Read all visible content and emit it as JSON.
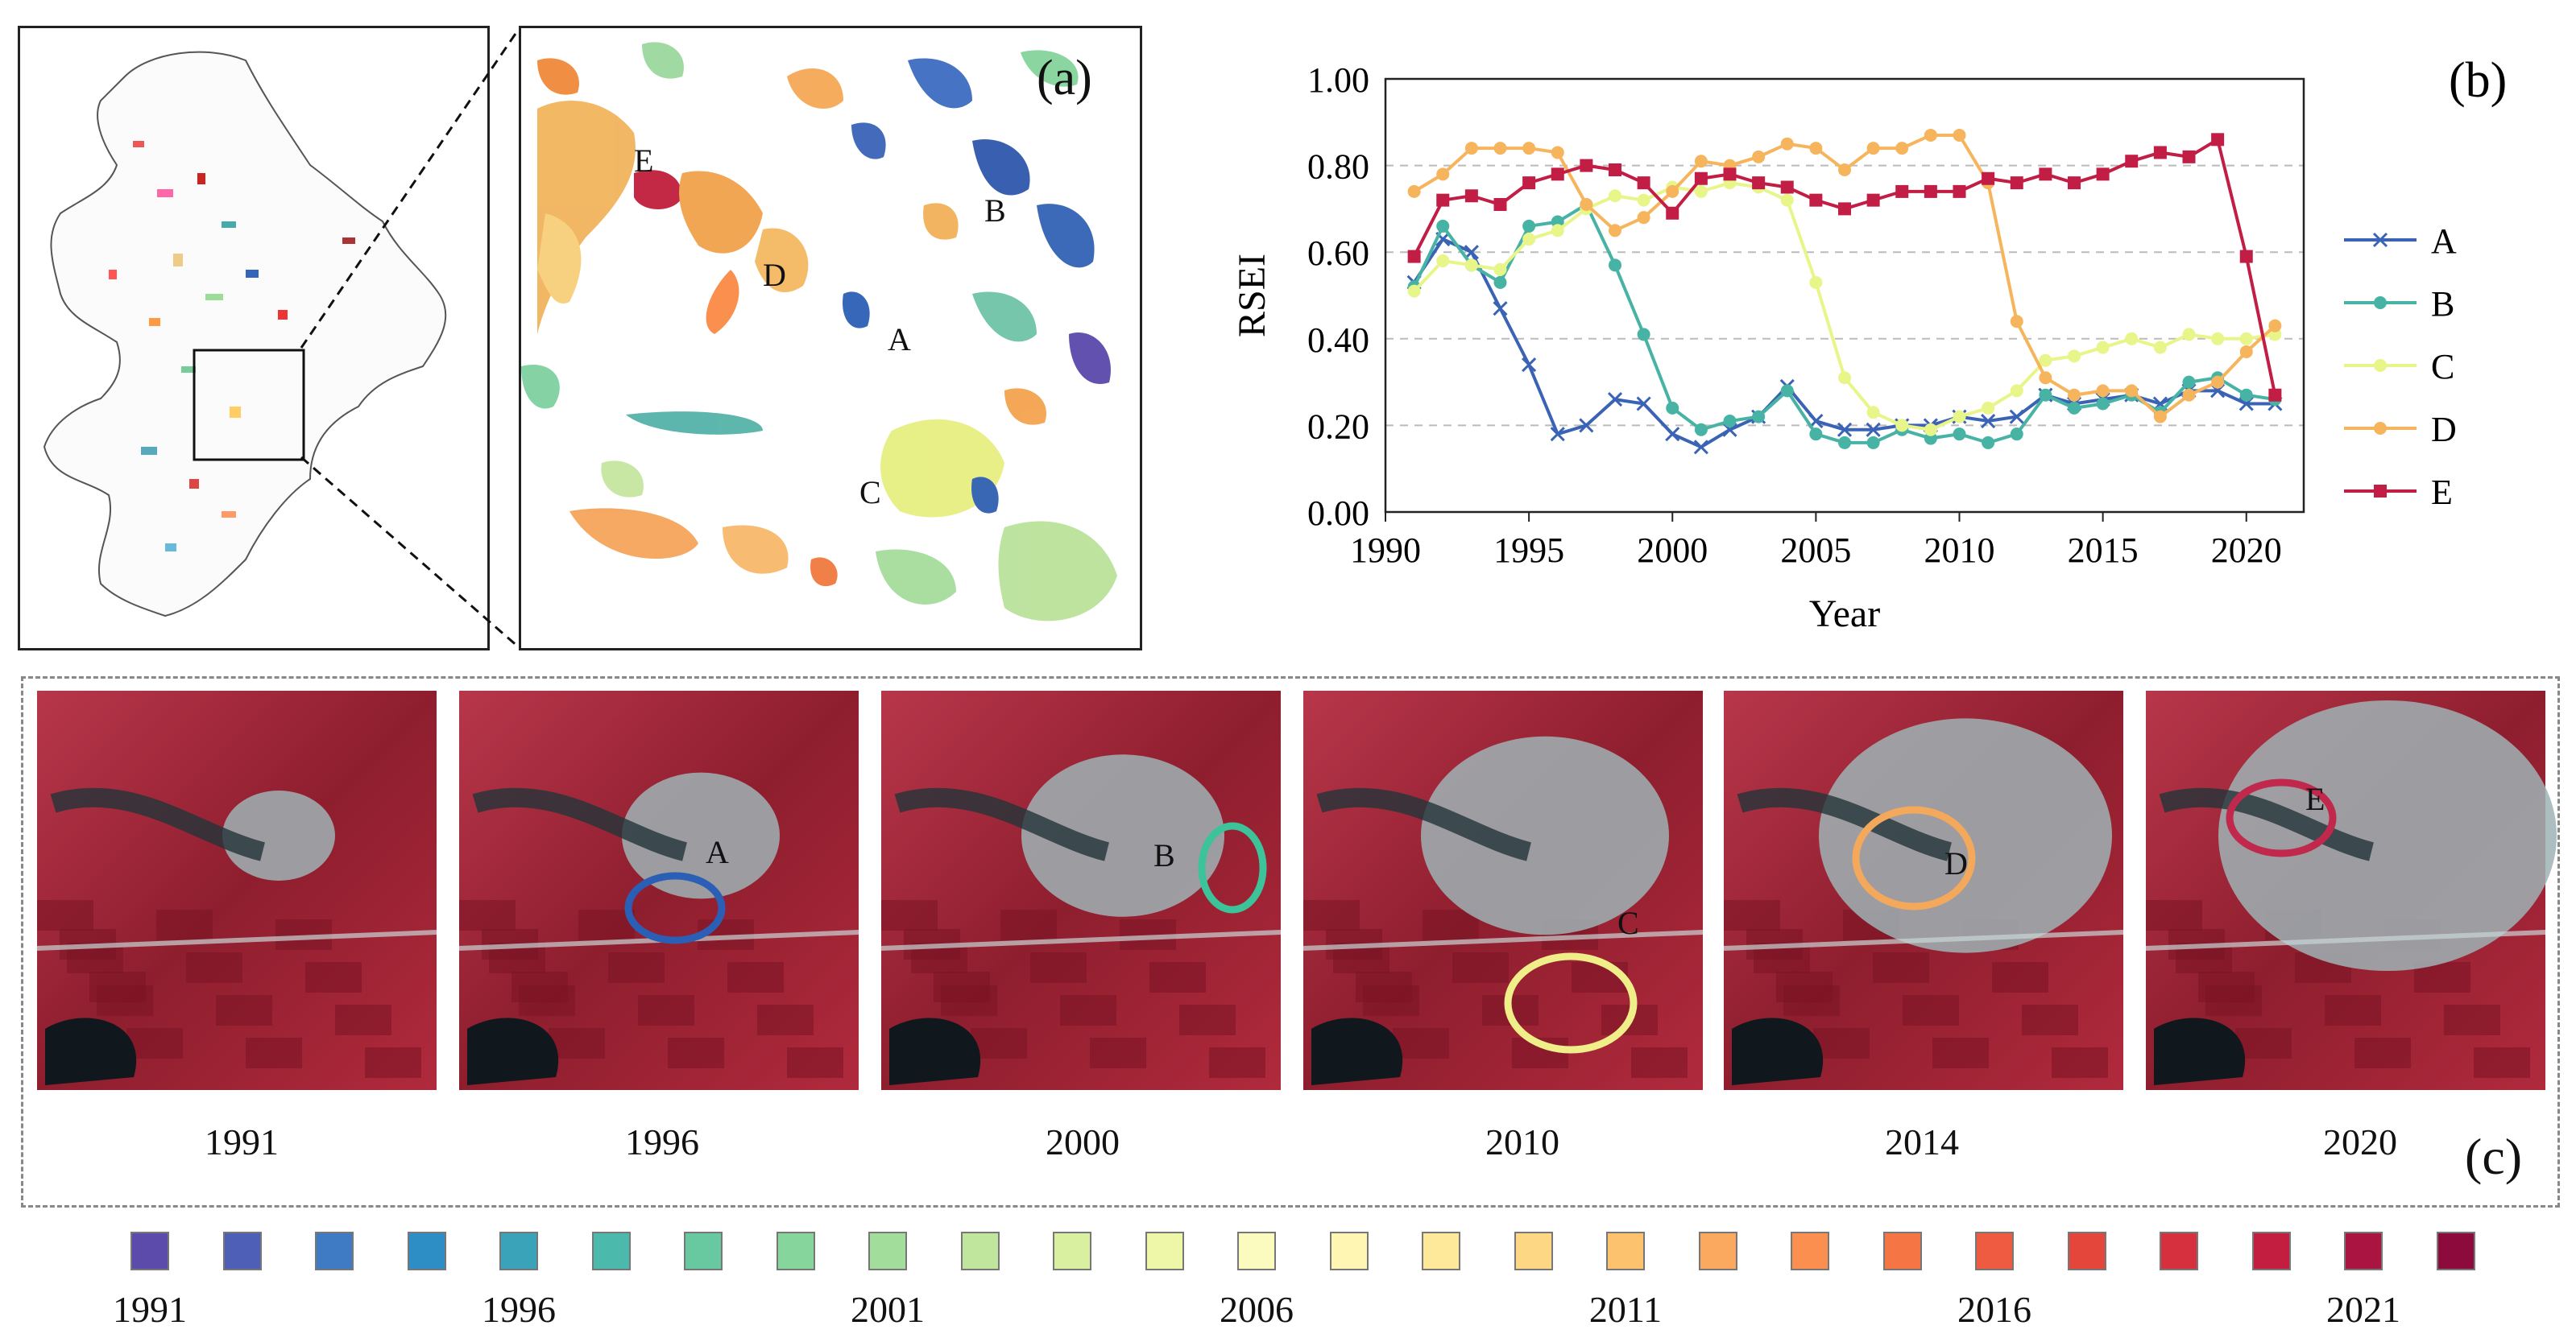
{
  "panel_a": {
    "label": "(a)",
    "points": [
      {
        "name": "E",
        "color": "#c8203a"
      },
      {
        "name": "D",
        "color": "#f0a040"
      },
      {
        "name": "B",
        "color": "#3060b8"
      },
      {
        "name": "A",
        "color": "#2c5fb5"
      },
      {
        "name": "C",
        "color": "#e6ef80"
      }
    ]
  },
  "panel_b": {
    "label": "(b)"
  },
  "panel_c": {
    "label": "(c)",
    "images": [
      {
        "year": "1991",
        "marker": "",
        "marker_color": ""
      },
      {
        "year": "1996",
        "marker": "A",
        "marker_color": "#2b5fb5"
      },
      {
        "year": "2000",
        "marker": "B",
        "marker_color": "#3cc39a"
      },
      {
        "year": "2010",
        "marker": "C",
        "marker_color": "#f0ee88"
      },
      {
        "year": "2014",
        "marker": "D",
        "marker_color": "#f3a85c"
      },
      {
        "year": "2020",
        "marker": "E",
        "marker_color": "#c0284c"
      }
    ]
  },
  "colorbar": {
    "colors": [
      "#5d4bab",
      "#4e5fb8",
      "#3f7ac4",
      "#2c8ec5",
      "#3aa3b9",
      "#4bb9ac",
      "#68c8a0",
      "#86d59d",
      "#a3dd9b",
      "#bfe69c",
      "#d9f0a0",
      "#eef7a8",
      "#fbfbbf",
      "#fff6b4",
      "#fee99a",
      "#fdd784",
      "#fcc26e",
      "#fba95f",
      "#fa8f50",
      "#f67544",
      "#ee5b40",
      "#e4463c",
      "#d6303e",
      "#c31e3f",
      "#a91440",
      "#8c0b3c"
    ],
    "tick_labels": [
      "1991",
      "1996",
      "2001",
      "2006",
      "2011",
      "2016",
      "2021"
    ]
  },
  "chart_data": {
    "type": "line",
    "title": "",
    "xlabel": "Year",
    "ylabel": "RSEI",
    "xlim": [
      1990,
      2022
    ],
    "ylim": [
      0,
      1.0
    ],
    "xticks": [
      "1990",
      "1995",
      "2000",
      "2005",
      "2010",
      "2015",
      "2020"
    ],
    "yticks": [
      "0.00",
      "0.20",
      "0.40",
      "0.60",
      "0.80",
      "1.00"
    ],
    "x": [
      1991,
      1992,
      1993,
      1994,
      1995,
      1996,
      1997,
      1998,
      1999,
      2000,
      2001,
      2002,
      2003,
      2004,
      2005,
      2006,
      2007,
      2008,
      2009,
      2010,
      2011,
      2012,
      2013,
      2014,
      2015,
      2016,
      2017,
      2018,
      2019,
      2020,
      2021
    ],
    "series": [
      {
        "name": "A",
        "color": "#3a63b5",
        "marker": "x",
        "values": [
          0.53,
          0.63,
          0.6,
          0.47,
          0.34,
          0.18,
          0.2,
          0.26,
          0.25,
          0.18,
          0.15,
          0.19,
          0.22,
          0.29,
          0.21,
          0.19,
          0.19,
          0.2,
          0.2,
          0.22,
          0.21,
          0.22,
          0.27,
          0.25,
          0.26,
          0.27,
          0.25,
          0.28,
          0.28,
          0.25,
          0.25
        ]
      },
      {
        "name": "B",
        "color": "#47b3a4",
        "marker": "circle",
        "values": [
          0.52,
          0.66,
          0.57,
          0.53,
          0.66,
          0.67,
          0.71,
          0.57,
          0.41,
          0.24,
          0.19,
          0.21,
          0.22,
          0.28,
          0.18,
          0.16,
          0.16,
          0.19,
          0.17,
          0.18,
          0.16,
          0.18,
          0.27,
          0.24,
          0.25,
          0.27,
          0.23,
          0.3,
          0.31,
          0.27,
          0.26
        ]
      },
      {
        "name": "C",
        "color": "#e8f588",
        "marker": "circle",
        "values": [
          0.51,
          0.58,
          0.57,
          0.56,
          0.63,
          0.65,
          0.7,
          0.73,
          0.72,
          0.75,
          0.74,
          0.76,
          0.75,
          0.72,
          0.53,
          0.31,
          0.23,
          0.2,
          0.19,
          0.22,
          0.24,
          0.28,
          0.35,
          0.36,
          0.38,
          0.4,
          0.38,
          0.41,
          0.4,
          0.4,
          0.41
        ]
      },
      {
        "name": "D",
        "color": "#f6b55c",
        "marker": "circle",
        "values": [
          0.74,
          0.78,
          0.84,
          0.84,
          0.84,
          0.83,
          0.71,
          0.65,
          0.68,
          0.74,
          0.81,
          0.8,
          0.82,
          0.85,
          0.84,
          0.79,
          0.84,
          0.84,
          0.87,
          0.87,
          0.76,
          0.44,
          0.31,
          0.27,
          0.28,
          0.28,
          0.22,
          0.27,
          0.3,
          0.37,
          0.43
        ]
      },
      {
        "name": "E",
        "color": "#c21d45",
        "marker": "square",
        "values": [
          0.59,
          0.72,
          0.73,
          0.71,
          0.76,
          0.78,
          0.8,
          0.79,
          0.76,
          0.69,
          0.77,
          0.78,
          0.76,
          0.75,
          0.72,
          0.7,
          0.72,
          0.74,
          0.74,
          0.74,
          0.77,
          0.76,
          0.78,
          0.76,
          0.78,
          0.81,
          0.83,
          0.82,
          0.86,
          0.59,
          0.27
        ]
      }
    ]
  }
}
